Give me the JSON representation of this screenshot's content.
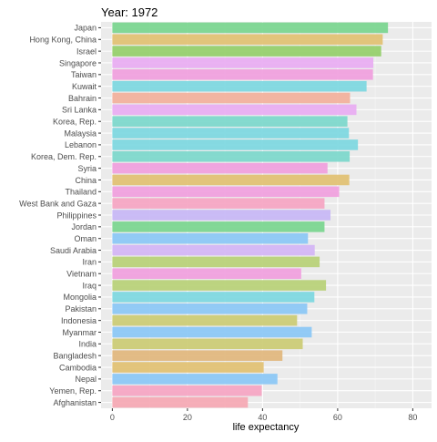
{
  "chart_data": {
    "type": "bar",
    "orientation": "horizontal",
    "title": "Year: 1972",
    "xlabel": "life expectancy",
    "ylabel": "",
    "xlim": [
      -3,
      85
    ],
    "x_ticks": [
      "0",
      "20",
      "40",
      "60",
      "80"
    ],
    "grid": true,
    "legend": "none",
    "categories": [
      "Japan",
      "Hong Kong, China",
      "Israel",
      "Singapore",
      "Taiwan",
      "Kuwait",
      "Bahrain",
      "Sri Lanka",
      "Korea, Rep.",
      "Malaysia",
      "Lebanon",
      "Korea, Dem. Rep.",
      "Syria",
      "China",
      "Thailand",
      "West Bank and Gaza",
      "Philippines",
      "Jordan",
      "Oman",
      "Saudi Arabia",
      "Iran",
      "Vietnam",
      "Iraq",
      "Mongolia",
      "Pakistan",
      "Indonesia",
      "Myanmar",
      "India",
      "Bangladesh",
      "Cambodia",
      "Nepal",
      "Yemen, Rep.",
      "Afghanistan"
    ],
    "values": [
      73.4,
      72.0,
      71.6,
      69.5,
      69.4,
      67.7,
      63.3,
      65.0,
      62.6,
      63.0,
      65.4,
      63.2,
      57.3,
      63.1,
      60.4,
      56.5,
      58.1,
      56.5,
      52.1,
      53.9,
      55.2,
      50.3,
      56.9,
      53.8,
      51.9,
      49.2,
      53.1,
      50.7,
      45.3,
      40.3,
      43.97,
      39.8,
      36.1
    ],
    "colors": [
      "#7CD691",
      "#E2C275",
      "#97D06E",
      "#E9AEF2",
      "#F0A1DE",
      "#7FD8E0",
      "#F2B29E",
      "#E9AEF2",
      "#7ED8CC",
      "#7FD8E0",
      "#7FD8E0",
      "#7ED8CC",
      "#F0A1DE",
      "#E2C275",
      "#F0A1DE",
      "#F5A7C4",
      "#C8B8F5",
      "#7CD691",
      "#8DC8F5",
      "#D4B6F5",
      "#B9D27A",
      "#F0A1DE",
      "#B9D27A",
      "#7FD8E0",
      "#8DC8F5",
      "#CCCC77",
      "#8DC8F5",
      "#CCCC77",
      "#E2B87F",
      "#E2C275",
      "#8DC8F5",
      "#F5A7C4",
      "#F5AAB5"
    ]
  }
}
